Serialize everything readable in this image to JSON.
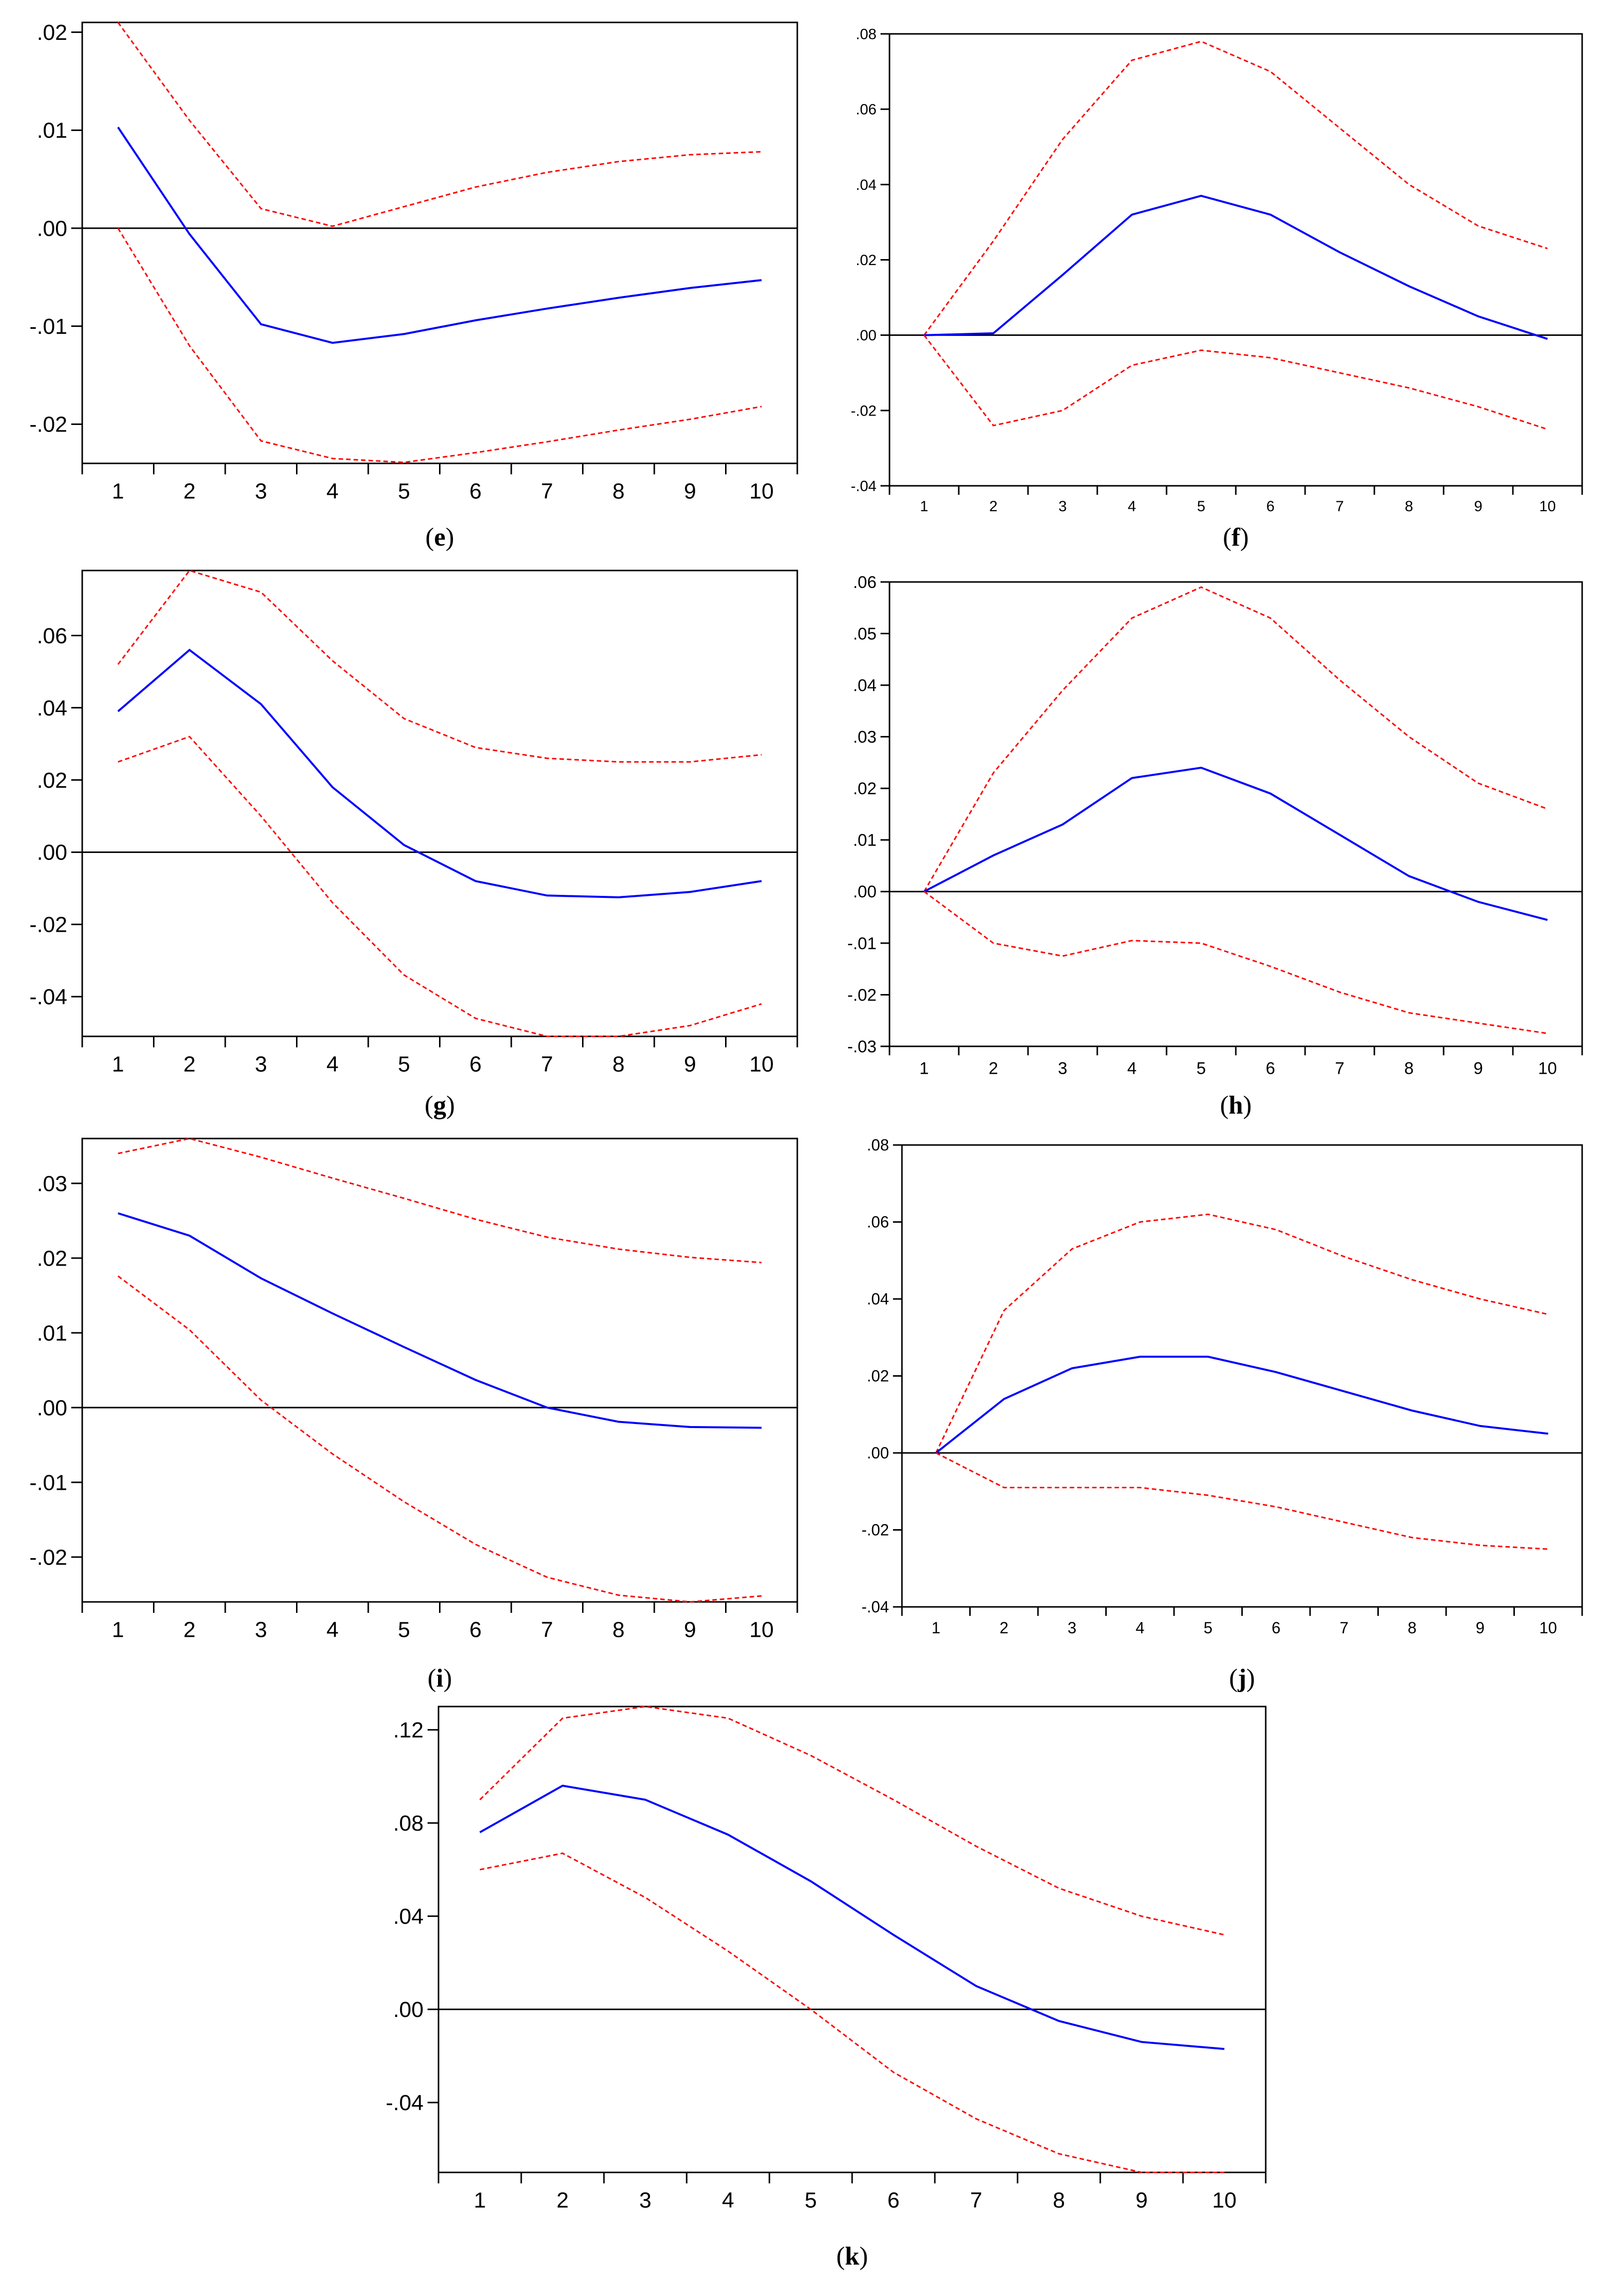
{
  "figure": {
    "description_colors": {
      "response": "#0000ff",
      "bands": "#ff0000",
      "axis": "#000000",
      "zero": "#000000"
    }
  },
  "chart_data": [
    {
      "id": "e",
      "type": "line",
      "label_letter": "e",
      "x": [
        1,
        2,
        3,
        4,
        5,
        6,
        7,
        8,
        9,
        10
      ],
      "xticks": [
        "1",
        "2",
        "3",
        "4",
        "5",
        "6",
        "7",
        "8",
        "9",
        "10"
      ],
      "ylim": [
        -0.024,
        0.021
      ],
      "yticks": [
        0.02,
        0.01,
        0.0,
        -0.01,
        -0.02
      ],
      "ytick_labels": [
        ".02",
        ".01",
        ".00",
        "-.01",
        "-.02"
      ],
      "series": [
        {
          "name": "upper",
          "style": "dashed",
          "color": "#ff0000",
          "values": [
            0.021,
            0.011,
            0.002,
            0.0002,
            0.0022,
            0.0042,
            0.0057,
            0.0068,
            0.0075,
            0.0078
          ]
        },
        {
          "name": "response",
          "style": "solid",
          "color": "#0000ff",
          "values": [
            0.0103,
            -0.0006,
            -0.0098,
            -0.0117,
            -0.0108,
            -0.0094,
            -0.0082,
            -0.0071,
            -0.0061,
            -0.0053
          ]
        },
        {
          "name": "lower",
          "style": "dashed",
          "color": "#ff0000",
          "values": [
            0.0,
            -0.012,
            -0.0217,
            -0.0235,
            -0.0239,
            -0.0229,
            -0.0218,
            -0.0206,
            -0.0195,
            -0.0182
          ]
        }
      ]
    },
    {
      "id": "f",
      "type": "line",
      "label_letter": "f",
      "x": [
        1,
        2,
        3,
        4,
        5,
        6,
        7,
        8,
        9,
        10
      ],
      "xticks": [
        "1",
        "2",
        "3",
        "4",
        "5",
        "6",
        "7",
        "8",
        "9",
        "10"
      ],
      "ylim": [
        -0.04,
        0.08
      ],
      "yticks": [
        0.08,
        0.06,
        0.04,
        0.02,
        0.0,
        -0.02,
        -0.04
      ],
      "ytick_labels": [
        ".08",
        ".06",
        ".04",
        ".02",
        ".00",
        "-.02",
        "-.04"
      ],
      "series": [
        {
          "name": "upper",
          "style": "dashed",
          "color": "#ff0000",
          "values": [
            0.0,
            0.025,
            0.052,
            0.073,
            0.078,
            0.07,
            0.055,
            0.04,
            0.029,
            0.023
          ]
        },
        {
          "name": "response",
          "style": "solid",
          "color": "#0000ff",
          "values": [
            0.0,
            0.0005,
            0.016,
            0.032,
            0.037,
            0.032,
            0.022,
            0.013,
            0.005,
            -0.001
          ]
        },
        {
          "name": "lower",
          "style": "dashed",
          "color": "#ff0000",
          "values": [
            0.0,
            -0.024,
            -0.02,
            -0.008,
            -0.004,
            -0.006,
            -0.01,
            -0.014,
            -0.019,
            -0.025
          ]
        }
      ]
    },
    {
      "id": "g",
      "type": "line",
      "label_letter": "g",
      "x": [
        1,
        2,
        3,
        4,
        5,
        6,
        7,
        8,
        9,
        10
      ],
      "xticks": [
        "1",
        "2",
        "3",
        "4",
        "5",
        "6",
        "7",
        "8",
        "9",
        "10"
      ],
      "ylim": [
        -0.051,
        0.078
      ],
      "yticks": [
        0.06,
        0.04,
        0.02,
        0.0,
        -0.02,
        -0.04
      ],
      "ytick_labels": [
        ".06",
        ".04",
        ".02",
        ".00",
        "-.02",
        "-.04"
      ],
      "series": [
        {
          "name": "upper",
          "style": "dashed",
          "color": "#ff0000",
          "values": [
            0.052,
            0.078,
            0.072,
            0.053,
            0.037,
            0.029,
            0.026,
            0.025,
            0.025,
            0.027
          ]
        },
        {
          "name": "response",
          "style": "solid",
          "color": "#0000ff",
          "values": [
            0.039,
            0.056,
            0.041,
            0.018,
            0.002,
            -0.008,
            -0.012,
            -0.0125,
            -0.011,
            -0.008
          ]
        },
        {
          "name": "lower",
          "style": "dashed",
          "color": "#ff0000",
          "values": [
            0.025,
            0.032,
            0.01,
            -0.014,
            -0.034,
            -0.046,
            -0.051,
            -0.051,
            -0.048,
            -0.042
          ]
        }
      ]
    },
    {
      "id": "h",
      "type": "line",
      "label_letter": "h",
      "x": [
        1,
        2,
        3,
        4,
        5,
        6,
        7,
        8,
        9,
        10
      ],
      "xticks": [
        "1",
        "2",
        "3",
        "4",
        "5",
        "6",
        "7",
        "8",
        "9",
        "10"
      ],
      "ylim": [
        -0.03,
        0.06
      ],
      "yticks": [
        0.06,
        0.05,
        0.04,
        0.03,
        0.02,
        0.01,
        0.0,
        -0.01,
        -0.02,
        -0.03
      ],
      "ytick_labels": [
        ".06",
        ".05",
        ".04",
        ".03",
        ".02",
        ".01",
        ".00",
        "-.01",
        "-.02",
        "-.03"
      ],
      "series": [
        {
          "name": "upper",
          "style": "dashed",
          "color": "#ff0000",
          "values": [
            0.0,
            0.023,
            0.039,
            0.053,
            0.059,
            0.053,
            0.041,
            0.03,
            0.021,
            0.016
          ]
        },
        {
          "name": "response",
          "style": "solid",
          "color": "#0000ff",
          "values": [
            0.0,
            0.007,
            0.013,
            0.022,
            0.024,
            0.019,
            0.011,
            0.003,
            -0.002,
            -0.0055
          ]
        },
        {
          "name": "lower",
          "style": "dashed",
          "color": "#ff0000",
          "values": [
            0.0,
            -0.01,
            -0.0125,
            -0.0095,
            -0.01,
            -0.0145,
            -0.0195,
            -0.0235,
            -0.0255,
            -0.0275
          ]
        }
      ]
    },
    {
      "id": "i",
      "type": "line",
      "label_letter": "i",
      "x": [
        1,
        2,
        3,
        4,
        5,
        6,
        7,
        8,
        9,
        10
      ],
      "xticks": [
        "1",
        "2",
        "3",
        "4",
        "5",
        "6",
        "7",
        "8",
        "9",
        "10"
      ],
      "ylim": [
        -0.026,
        0.036
      ],
      "yticks": [
        0.03,
        0.02,
        0.01,
        0.0,
        -0.01,
        -0.02
      ],
      "ytick_labels": [
        ".03",
        ".02",
        ".01",
        ".00",
        "-.01",
        "-.02"
      ],
      "series": [
        {
          "name": "upper",
          "style": "dashed",
          "color": "#ff0000",
          "values": [
            0.034,
            0.036,
            0.0335,
            0.0307,
            0.028,
            0.0252,
            0.0228,
            0.0212,
            0.0201,
            0.0194
          ]
        },
        {
          "name": "response",
          "style": "solid",
          "color": "#0000ff",
          "values": [
            0.026,
            0.023,
            0.0173,
            0.0126,
            0.0081,
            0.0037,
            0.0,
            -0.0019,
            -0.0026,
            -0.0027
          ]
        },
        {
          "name": "lower",
          "style": "dashed",
          "color": "#ff0000",
          "values": [
            0.0176,
            0.0104,
            0.001,
            -0.0062,
            -0.0126,
            -0.0183,
            -0.0227,
            -0.0251,
            -0.026,
            -0.0252
          ]
        }
      ]
    },
    {
      "id": "j",
      "type": "line",
      "label_letter": "j",
      "x": [
        1,
        2,
        3,
        4,
        5,
        6,
        7,
        8,
        9,
        10
      ],
      "xticks": [
        "1",
        "2",
        "3",
        "4",
        "5",
        "6",
        "7",
        "8",
        "9",
        "10"
      ],
      "ylim": [
        -0.04,
        0.08
      ],
      "yticks": [
        0.08,
        0.06,
        0.04,
        0.02,
        0.0,
        -0.02,
        -0.04
      ],
      "ytick_labels": [
        ".08",
        ".06",
        ".04",
        ".02",
        ".00",
        "-.02",
        "-.04"
      ],
      "series": [
        {
          "name": "upper",
          "style": "dashed",
          "color": "#ff0000",
          "values": [
            0.0,
            0.037,
            0.053,
            0.06,
            0.062,
            0.058,
            0.051,
            0.045,
            0.04,
            0.036
          ]
        },
        {
          "name": "response",
          "style": "solid",
          "color": "#0000ff",
          "values": [
            0.0,
            0.014,
            0.022,
            0.025,
            0.025,
            0.021,
            0.016,
            0.011,
            0.007,
            0.005
          ]
        },
        {
          "name": "lower",
          "style": "dashed",
          "color": "#ff0000",
          "values": [
            0.0,
            -0.009,
            -0.009,
            -0.009,
            -0.011,
            -0.014,
            -0.018,
            -0.022,
            -0.024,
            -0.025
          ]
        }
      ]
    },
    {
      "id": "k",
      "type": "line",
      "label_letter": "k",
      "x": [
        1,
        2,
        3,
        4,
        5,
        6,
        7,
        8,
        9,
        10
      ],
      "xticks": [
        "1",
        "2",
        "3",
        "4",
        "5",
        "6",
        "7",
        "8",
        "9",
        "10"
      ],
      "ylim": [
        -0.07,
        0.13
      ],
      "yticks": [
        0.12,
        0.08,
        0.04,
        0.0,
        -0.04
      ],
      "ytick_labels": [
        ".12",
        ".08",
        ".04",
        ".00",
        "-.04"
      ],
      "series": [
        {
          "name": "upper",
          "style": "dashed",
          "color": "#ff0000",
          "values": [
            0.09,
            0.125,
            0.13,
            0.125,
            0.109,
            0.09,
            0.07,
            0.052,
            0.04,
            0.032
          ]
        },
        {
          "name": "response",
          "style": "solid",
          "color": "#0000ff",
          "values": [
            0.076,
            0.096,
            0.09,
            0.075,
            0.055,
            0.032,
            0.01,
            -0.005,
            -0.014,
            -0.017
          ]
        },
        {
          "name": "lower",
          "style": "dashed",
          "color": "#ff0000",
          "values": [
            0.06,
            0.067,
            0.048,
            0.025,
            0.0,
            -0.027,
            -0.047,
            -0.062,
            -0.07,
            -0.07
          ]
        }
      ]
    }
  ]
}
